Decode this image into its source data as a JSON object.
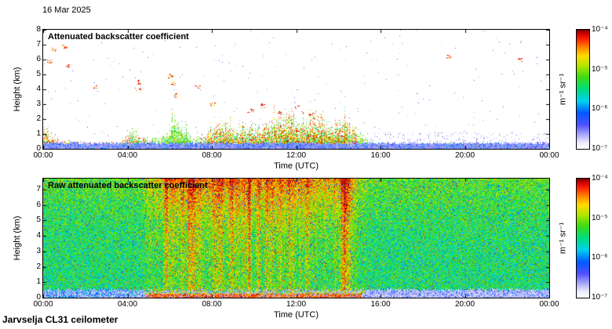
{
  "header": {
    "date": "16 Mar 2025"
  },
  "footer": {
    "instrument": "Jarvselja CL31 ceilometer"
  },
  "colormap": [
    {
      "v": 0.0,
      "c": "#ffffff"
    },
    {
      "v": 0.05,
      "c": "#ebebff"
    },
    {
      "v": 0.12,
      "c": "#a5a5fa"
    },
    {
      "v": 0.2,
      "c": "#5050ff"
    },
    {
      "v": 0.3,
      "c": "#005aff"
    },
    {
      "v": 0.4,
      "c": "#00d2f0"
    },
    {
      "v": 0.5,
      "c": "#00dc82"
    },
    {
      "v": 0.6,
      "c": "#3cdc14"
    },
    {
      "v": 0.7,
      "c": "#b4e600"
    },
    {
      "v": 0.78,
      "c": "#ffdc00"
    },
    {
      "v": 0.85,
      "c": "#ff8c00"
    },
    {
      "v": 0.92,
      "c": "#ff2800"
    },
    {
      "v": 0.97,
      "c": "#d20000"
    },
    {
      "v": 1.0,
      "c": "#7d0000"
    }
  ],
  "chart_data": [
    {
      "type": "heatmap",
      "title": "Attenuated backscatter coefficient",
      "xlabel": "Time (UTC)",
      "ylabel": "Height (km)",
      "x_ticks": [
        "00:00",
        "04:00",
        "08:00",
        "12:00",
        "16:00",
        "20:00",
        "00:00"
      ],
      "x_tick_hours": [
        0,
        4,
        8,
        12,
        16,
        20,
        24
      ],
      "y_ticks": [
        0,
        1,
        2,
        3,
        4,
        5,
        6,
        7,
        8
      ],
      "ylim": [
        0,
        8
      ],
      "colorbar": {
        "ticks": [
          "10⁻⁴",
          "10⁻⁵",
          "10⁻⁶",
          "10⁻⁷"
        ],
        "unit": "m⁻¹ sr⁻¹",
        "scale": "log"
      },
      "content": {
        "background": "white (clear air, below detection)",
        "surface_band": {
          "top_km": 0.45,
          "description": "speckled pale-blue near-surface signal across whole day"
        },
        "boundary_layer": {
          "description": "ground-hugging aerosol layer, red/orange before 05:00, convective plumes to ~2 km between 06:00 and 15:00, collapsing after 15:00",
          "hours": [
            0,
            0.7,
            1.5,
            2.5,
            3.5,
            4.2,
            5.0,
            5.6,
            6.3,
            7.0,
            7.7,
            8.4,
            9.0,
            9.7,
            10.3,
            11.0,
            11.7,
            12.3,
            13.0,
            13.7,
            14.3,
            15.0,
            15.7,
            16.2
          ],
          "top_km": [
            1.5,
            0.6,
            0.45,
            0.4,
            0.45,
            1.2,
            0.6,
            0.8,
            2.2,
            0.7,
            1.0,
            1.8,
            1.2,
            1.7,
            1.4,
            2.0,
            2.2,
            1.8,
            2.2,
            1.6,
            2.0,
            0.9,
            0.3,
            0.15
          ]
        },
        "clouds": [
          [
            0.3,
            5.9
          ],
          [
            0.5,
            6.7
          ],
          [
            1.0,
            6.9
          ],
          [
            1.1,
            5.6
          ],
          [
            2.5,
            4.15
          ],
          [
            4.5,
            4.0
          ],
          [
            4.55,
            4.5
          ],
          [
            6.0,
            4.9
          ],
          [
            6.15,
            4.4
          ],
          [
            6.3,
            3.6
          ],
          [
            7.3,
            4.2
          ],
          [
            8.0,
            3.0
          ],
          [
            9.8,
            2.6
          ],
          [
            10.4,
            2.9
          ],
          [
            11.2,
            2.5
          ],
          [
            12.0,
            2.85
          ],
          [
            12.7,
            2.3
          ],
          [
            13.1,
            2.2
          ],
          [
            19.2,
            6.2
          ],
          [
            22.6,
            6.0
          ]
        ]
      }
    },
    {
      "type": "heatmap",
      "title": "Raw attenuated backscatter coefficient",
      "xlabel": "Time (UTC)",
      "ylabel": "Height (km)",
      "x_ticks": [
        "00:00",
        "04:00",
        "08:00",
        "12:00",
        "16:00",
        "20:00",
        "00:00"
      ],
      "x_tick_hours": [
        0,
        4,
        8,
        12,
        16,
        20,
        24
      ],
      "y_ticks": [
        0,
        1,
        2,
        3,
        4,
        5,
        6,
        7
      ],
      "ylim": [
        0,
        7.7
      ],
      "colorbar": {
        "ticks": [
          "10⁻⁴",
          "10⁻⁵",
          "10⁻⁶",
          "10⁻⁷"
        ],
        "unit": "m⁻¹ sr⁻¹",
        "scale": "log"
      },
      "content": {
        "background": "dense green/cyan receiver noise over full height range",
        "enhanced_hours": [
          5.5,
          14.8
        ],
        "enhanced_description": "vertical red/orange noise streaks (daylight solar background) strongest 06:00-14:30, reddening toward panel top",
        "surface_band": {
          "top_km": 0.55,
          "description": "pale low-noise band below ~0.5 km with blue speckle, darker blue patch before 04:00"
        },
        "surface_red_band": {
          "hours": [
            5.7,
            14.6
          ],
          "top_km": 0.24
        }
      }
    }
  ]
}
